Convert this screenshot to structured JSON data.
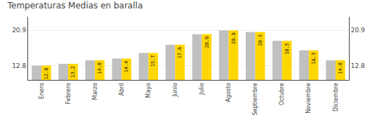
{
  "chart_data": {
    "type": "bar",
    "title": "Temperaturas Medias en baralla",
    "categories": [
      "Enero",
      "Febrero",
      "Marzo",
      "Abril",
      "Mayo",
      "Junio",
      "Julio",
      "Agosto",
      "Septiembre",
      "Octubre",
      "Noviembre",
      "Diciembre"
    ],
    "series": [
      {
        "color": "#C0C0C0",
        "values": [
          12.8,
          13.2,
          14.0,
          14.4,
          15.7,
          17.6,
          20.0,
          20.9,
          20.5,
          18.5,
          16.3,
          14.0
        ]
      },
      {
        "color": "#FFD700",
        "values": [
          12.8,
          13.2,
          14.0,
          14.4,
          15.7,
          17.6,
          20.0,
          20.9,
          20.5,
          18.5,
          16.3,
          14.0
        ],
        "value_labels": [
          "12.8",
          "13.2",
          "14.0",
          "14.4",
          "15.7",
          "17.6",
          "20.0",
          "20.9",
          "20.5",
          "18.5",
          "16.3",
          "14.0"
        ],
        "data_labels": true
      }
    ],
    "ylim": [
      9.5,
      24.0
    ],
    "yticks": [
      12.8,
      20.9
    ],
    "y2lim": [
      9.5,
      24.0
    ],
    "y2ticks": [
      12.8,
      20.9
    ],
    "grid": true
  }
}
